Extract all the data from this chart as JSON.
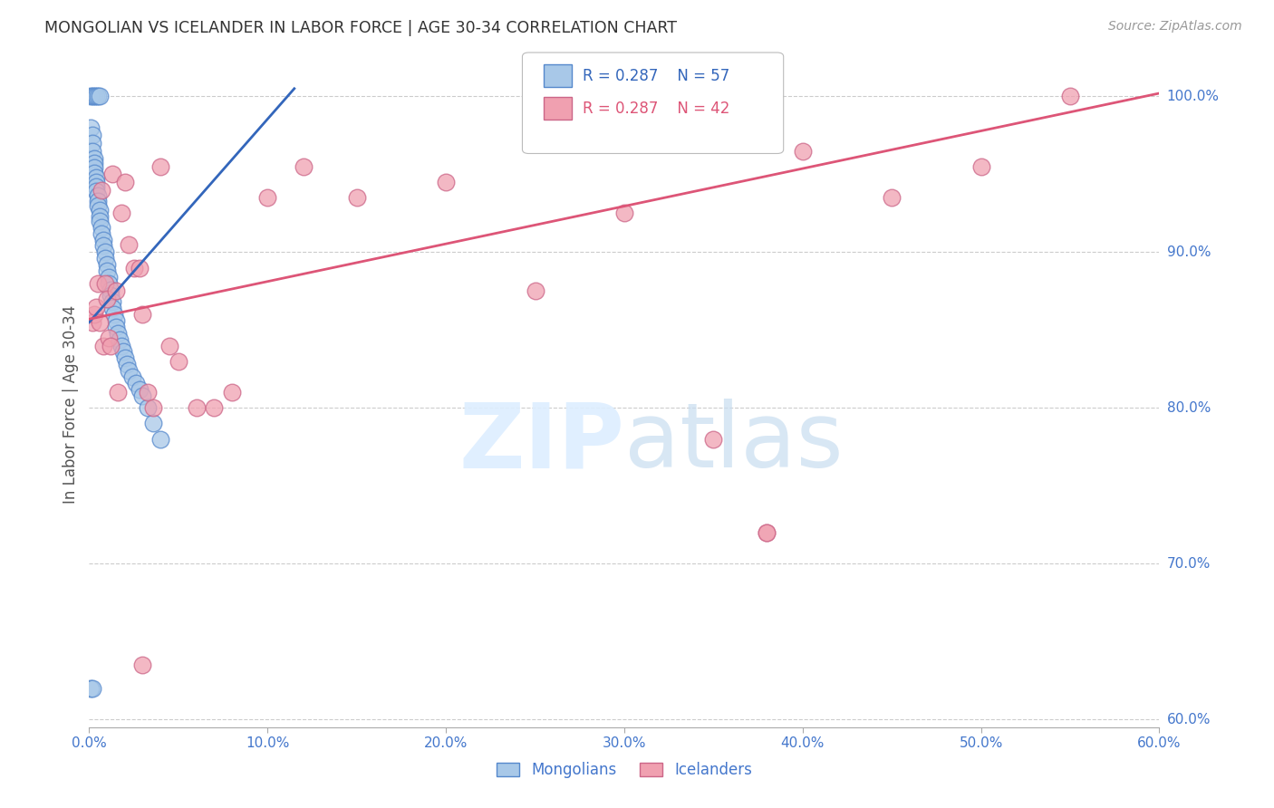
{
  "title": "MONGOLIAN VS ICELANDER IN LABOR FORCE | AGE 30-34 CORRELATION CHART",
  "source": "Source: ZipAtlas.com",
  "ylabel": "In Labor Force | Age 30-34",
  "xlim": [
    0.0,
    0.6
  ],
  "ylim": [
    0.595,
    1.01
  ],
  "xticks": [
    0.0,
    0.1,
    0.2,
    0.3,
    0.4,
    0.5,
    0.6
  ],
  "xticklabels": [
    "0.0%",
    "10.0%",
    "20.0%",
    "30.0%",
    "40.0%",
    "50.0%",
    "60.0%"
  ],
  "yticks_right": [
    0.6,
    0.7,
    0.8,
    0.9,
    1.0
  ],
  "yticklabels_right": [
    "60.0%",
    "70.0%",
    "80.0%",
    "90.0%",
    "100.0%"
  ],
  "legend_blue_r": "R = 0.287",
  "legend_blue_n": "N = 57",
  "legend_pink_r": "R = 0.287",
  "legend_pink_n": "N = 42",
  "legend_blue_label": "Mongolians",
  "legend_pink_label": "Icelanders",
  "blue_color": "#a8c8e8",
  "pink_color": "#f0a0b0",
  "blue_edge_color": "#5588cc",
  "pink_edge_color": "#cc6688",
  "blue_line_color": "#3366bb",
  "pink_line_color": "#dd5577",
  "watermark_color": "#ddeeff",
  "grid_color": "#cccccc",
  "title_color": "#333333",
  "axis_label_color": "#555555",
  "tick_color": "#4477cc",
  "background_color": "#ffffff",
  "blue_x": [
    0.001,
    0.001,
    0.002,
    0.002,
    0.002,
    0.003,
    0.003,
    0.003,
    0.003,
    0.004,
    0.004,
    0.004,
    0.004,
    0.005,
    0.005,
    0.005,
    0.006,
    0.006,
    0.006,
    0.007,
    0.007,
    0.008,
    0.008,
    0.009,
    0.009,
    0.01,
    0.01,
    0.011,
    0.011,
    0.012,
    0.012,
    0.013,
    0.013,
    0.014,
    0.015,
    0.015,
    0.016,
    0.017,
    0.018,
    0.019,
    0.02,
    0.021,
    0.022,
    0.024,
    0.026,
    0.028,
    0.03,
    0.033,
    0.036,
    0.04,
    0.002,
    0.003,
    0.004,
    0.005,
    0.006,
    0.001,
    0.002
  ],
  "blue_y": [
    1.0,
    0.98,
    0.975,
    0.97,
    0.965,
    0.96,
    0.957,
    0.954,
    0.951,
    0.948,
    0.945,
    0.942,
    0.939,
    0.936,
    0.933,
    0.93,
    0.927,
    0.923,
    0.92,
    0.916,
    0.912,
    0.908,
    0.904,
    0.9,
    0.896,
    0.892,
    0.888,
    0.884,
    0.88,
    0.876,
    0.872,
    0.868,
    0.864,
    0.86,
    0.856,
    0.852,
    0.848,
    0.844,
    0.84,
    0.836,
    0.832,
    0.828,
    0.824,
    0.82,
    0.816,
    0.812,
    0.808,
    0.8,
    0.79,
    0.78,
    1.0,
    1.0,
    1.0,
    1.0,
    1.0,
    0.62,
    0.62
  ],
  "pink_x": [
    0.002,
    0.003,
    0.004,
    0.005,
    0.006,
    0.007,
    0.008,
    0.009,
    0.01,
    0.011,
    0.012,
    0.013,
    0.015,
    0.016,
    0.018,
    0.02,
    0.022,
    0.025,
    0.028,
    0.03,
    0.033,
    0.036,
    0.04,
    0.045,
    0.05,
    0.06,
    0.07,
    0.08,
    0.1,
    0.12,
    0.15,
    0.2,
    0.25,
    0.3,
    0.35,
    0.38,
    0.4,
    0.45,
    0.5,
    0.55,
    0.03,
    0.38
  ],
  "pink_y": [
    0.855,
    0.86,
    0.865,
    0.88,
    0.855,
    0.94,
    0.84,
    0.88,
    0.87,
    0.845,
    0.84,
    0.95,
    0.875,
    0.81,
    0.925,
    0.945,
    0.905,
    0.89,
    0.89,
    0.86,
    0.81,
    0.8,
    0.955,
    0.84,
    0.83,
    0.8,
    0.8,
    0.81,
    0.935,
    0.955,
    0.935,
    0.945,
    0.875,
    0.925,
    0.78,
    0.72,
    0.965,
    0.935,
    0.955,
    1.0,
    0.635,
    0.72
  ],
  "blue_line_x": [
    0.0,
    0.115
  ],
  "blue_line_y": [
    0.855,
    1.005
  ],
  "pink_line_x": [
    0.0,
    0.6
  ],
  "pink_line_y": [
    0.857,
    1.002
  ]
}
